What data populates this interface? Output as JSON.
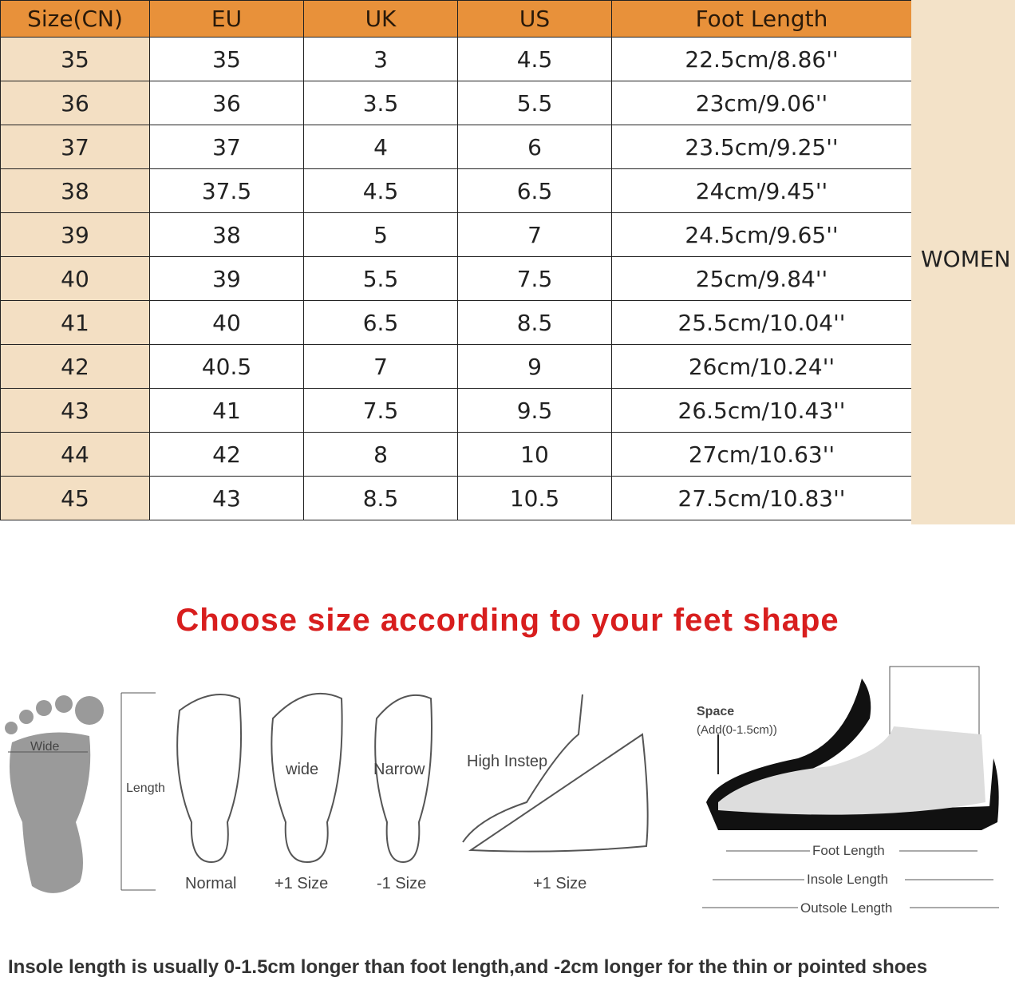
{
  "table": {
    "headers": [
      "Size(CN)",
      "EU",
      "UK",
      "US",
      "Foot Length"
    ],
    "rows": [
      [
        "35",
        "35",
        "3",
        "4.5",
        "22.5cm/8.86''"
      ],
      [
        "36",
        "36",
        "3.5",
        "5.5",
        "23cm/9.06''"
      ],
      [
        "37",
        "37",
        "4",
        "6",
        "23.5cm/9.25''"
      ],
      [
        "38",
        "37.5",
        "4.5",
        "6.5",
        "24cm/9.45''"
      ],
      [
        "39",
        "38",
        "5",
        "7",
        "24.5cm/9.65''"
      ],
      [
        "40",
        "39",
        "5.5",
        "7.5",
        "25cm/9.84''"
      ],
      [
        "41",
        "40",
        "6.5",
        "8.5",
        "25.5cm/10.04''"
      ],
      [
        "42",
        "40.5",
        "7",
        "9",
        "26cm/10.24''"
      ],
      [
        "43",
        "41",
        "7.5",
        "9.5",
        "26.5cm/10.43''"
      ],
      [
        "44",
        "42",
        "8",
        "10",
        "27cm/10.63''"
      ],
      [
        "45",
        "43",
        "8.5",
        "10.5",
        "27.5cm/10.83''"
      ]
    ],
    "side_label": "WOMEN"
  },
  "colors": {
    "header": "#e8913a",
    "first_col": "#f3dfc3",
    "side": "#f3e2c8",
    "title": "#d81e1e"
  },
  "guide": {
    "title": "Choose size according to your feet shape",
    "wide_label": "Wide",
    "length_label": "Length",
    "feet": [
      {
        "word": "",
        "caption": "Normal"
      },
      {
        "word": "wide",
        "caption": "+1 Size"
      },
      {
        "word": "Narrow",
        "caption": "-1 Size"
      },
      {
        "word": "High Instep",
        "caption": "+1 Size"
      }
    ],
    "shoe": {
      "space": "Space",
      "space_note": "(Add(0-1.5cm))",
      "foot_length": "Foot Length",
      "insole_length": "Insole Length",
      "outsole_length": "Outsole Length"
    },
    "note": "Insole length is usually 0-1.5cm longer than foot length,and -2cm longer for the thin or pointed shoes"
  }
}
